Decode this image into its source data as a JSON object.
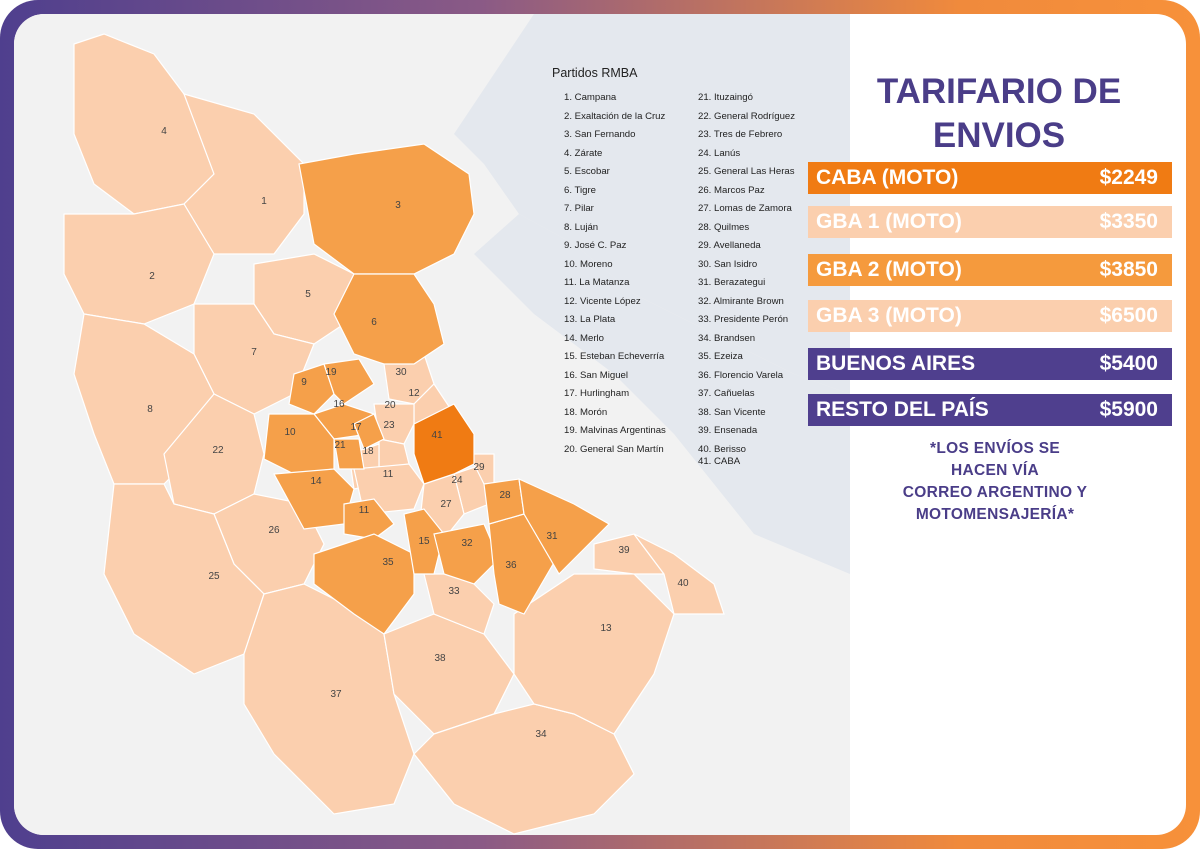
{
  "legend": {
    "title": "Partidos RMBA",
    "col1": [
      "1. Campana",
      "2. Exaltación de la Cruz",
      "3. San Fernando",
      "4. Zárate",
      "5. Escobar",
      "6. Tigre",
      "7. Pilar",
      "8. Luján",
      "9. José C. Paz",
      "10. Moreno",
      "11. La Matanza",
      "12. Vicente López",
      "13. La Plata",
      "14. Merlo",
      "15. Esteban Echeverría",
      "16. San Miguel",
      "17. Hurlingham",
      "18. Morón",
      "19. Malvinas Argentinas",
      "20. General San Martín"
    ],
    "col2": [
      "21. Ituzaingó",
      "22. General Rodríguez",
      "23. Tres de Febrero",
      "24. Lanús",
      "25. General Las Heras",
      "26. Marcos Paz",
      "27. Lomas de Zamora",
      "28. Quilmes",
      "29. Avellaneda",
      "30. San Isidro",
      "31. Berazategui",
      "32. Almirante Brown",
      "33. Presidente Perón",
      "34. Brandsen",
      "35. Ezeiza",
      "36. Florencio Varela",
      "37. Cañuelas",
      "38. San Vicente",
      "39. Ensenada",
      "40. Berisso",
      "41. CABA"
    ]
  },
  "panel": {
    "title_line1": "TARIFARIO DE",
    "title_line2": "ENVIOS",
    "rates": [
      {
        "label": "CABA (MOTO)",
        "price": "$2249",
        "bg": "#f07b13",
        "fg": "#ffffff"
      },
      {
        "label": "GBA 1 (MOTO)",
        "price": "$3350",
        "bg": "#fbcfae",
        "fg": "#ffffff"
      },
      {
        "label": "GBA 2 (MOTO)",
        "price": "$3850",
        "bg": "#f59a3d",
        "fg": "#ffffff"
      },
      {
        "label": "GBA 3 (MOTO)",
        "price": "$6500",
        "bg": "#fbcfae",
        "fg": "#ffffff"
      },
      {
        "label": "BUENOS AIRES",
        "price": "$5400",
        "bg": "#4f3f8e",
        "fg": "#ffffff"
      },
      {
        "label": "RESTO DEL PAÍS",
        "price": "$5900",
        "bg": "#4f3f8e",
        "fg": "#ffffff"
      }
    ],
    "note_lines": [
      "*LOS ENVÍOS SE",
      "HACEN VÍA",
      "CORREO ARGENTINO Y",
      "MOTOMENSAJERÍA*"
    ]
  },
  "map": {
    "colors": {
      "caba": "#f07b13",
      "gba_inner": "#f5a04a",
      "gba_outer": "#fbcfae",
      "water": "#e4e8ee",
      "land": "#f2f2f2"
    },
    "labels": [
      "1",
      "2",
      "3",
      "4",
      "5",
      "6",
      "7",
      "8",
      "9",
      "10",
      "11",
      "11",
      "12",
      "13",
      "14",
      "15",
      "16",
      "17",
      "18",
      "19",
      "20",
      "21",
      "22",
      "23",
      "24",
      "25",
      "26",
      "27",
      "28",
      "29",
      "30",
      "31",
      "32",
      "33",
      "34",
      "35",
      "36",
      "37",
      "38",
      "39",
      "40",
      "41"
    ]
  }
}
